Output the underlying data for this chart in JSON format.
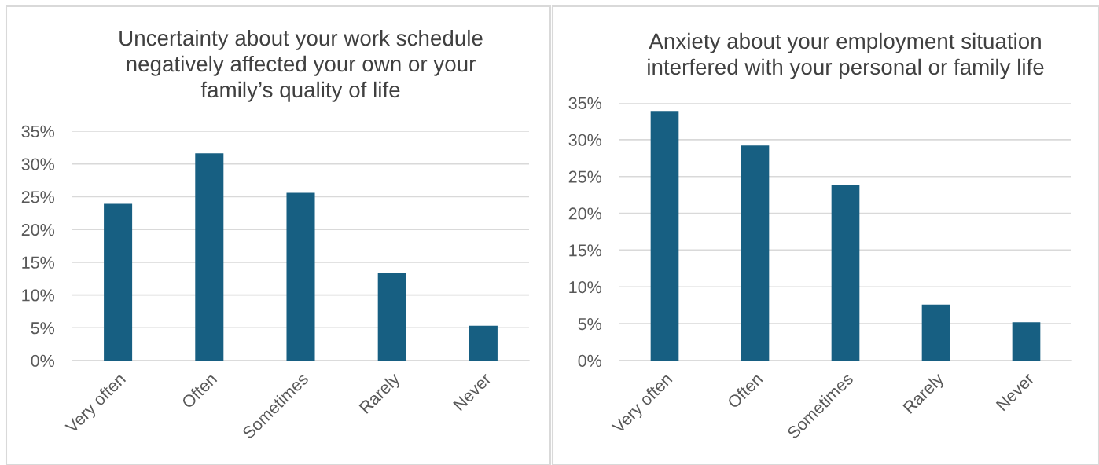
{
  "chart_data": [
    {
      "type": "bar",
      "title": "Uncertainty about your work schedule\nnegatively affected your own or your\nfamily’s quality of life",
      "categories": [
        "Very often",
        "Often",
        "Sometimes",
        "Rarely",
        "Never"
      ],
      "values": [
        23.9,
        31.6,
        25.6,
        13.3,
        5.3
      ],
      "color": "#175f82",
      "ylim": [
        0,
        35
      ],
      "yticks": [
        {
          "value": 0,
          "label": "0%"
        },
        {
          "value": 5,
          "label": "5%"
        },
        {
          "value": 10,
          "label": "10%"
        },
        {
          "value": 15,
          "label": "15%"
        },
        {
          "value": 20,
          "label": "20%"
        },
        {
          "value": 25,
          "label": "25%"
        },
        {
          "value": 30,
          "label": "30%"
        },
        {
          "value": 35,
          "label": "35%"
        }
      ],
      "grid": "y",
      "legend": false
    },
    {
      "type": "bar",
      "title": "Anxiety about your employment situation\ninterfered with your personal or family life",
      "categories": [
        "Very often",
        "Often",
        "Sometimes",
        "Rarely",
        "Never"
      ],
      "values": [
        33.9,
        29.2,
        23.9,
        7.6,
        5.2
      ],
      "color": "#175f82",
      "ylim": [
        0,
        35
      ],
      "yticks": [
        {
          "value": 0,
          "label": "0%"
        },
        {
          "value": 5,
          "label": "5%"
        },
        {
          "value": 10,
          "label": "10%"
        },
        {
          "value": 15,
          "label": "15%"
        },
        {
          "value": 20,
          "label": "20%"
        },
        {
          "value": 25,
          "label": "25%"
        },
        {
          "value": 30,
          "label": "30%"
        },
        {
          "value": 35,
          "label": "35%"
        }
      ],
      "grid": "y",
      "legend": false
    }
  ]
}
